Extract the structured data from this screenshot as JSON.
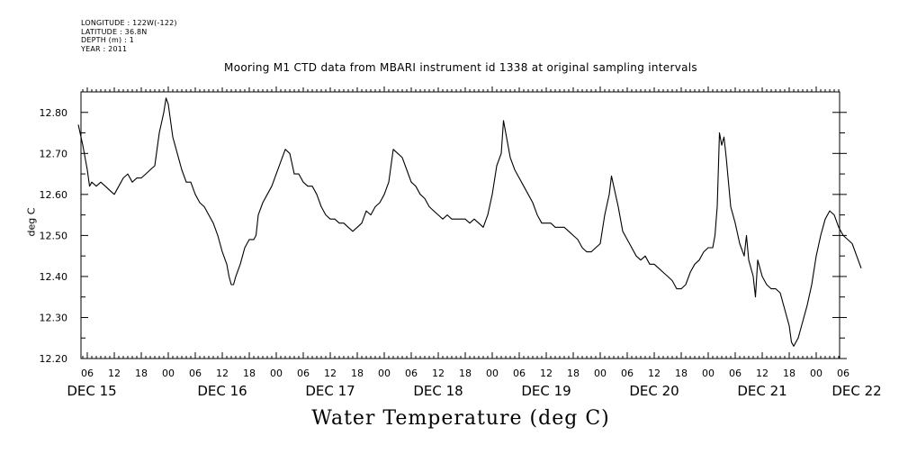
{
  "metadata": {
    "longitude": "LONGITUDE : 122W(-122)",
    "latitude": "LATITUDE : 36.8N",
    "depth": "DEPTH (m) : 1",
    "year": "YEAR : 2011"
  },
  "chart_data": {
    "type": "line",
    "title": "Mooring M1 CTD data from MBARI instrument id 1338 at original sampling intervals",
    "bottom_title": "Water Temperature (deg C)",
    "ylabel": "deg C",
    "xlabel": "",
    "ylim": [
      12.2,
      12.85
    ],
    "yticks": [
      "12.20",
      "12.30",
      "12.40",
      "12.50",
      "12.60",
      "12.70",
      "12.80"
    ],
    "x_units": "hours since DEC 15 00:00 (2011)",
    "xlim": [
      4,
      173
    ],
    "hour_tick_labels": [
      "06",
      "12",
      "18",
      "00",
      "06",
      "12",
      "18",
      "00",
      "06",
      "12",
      "18",
      "00",
      "06",
      "12",
      "18",
      "00",
      "06",
      "12",
      "18",
      "00",
      "06",
      "12",
      "18",
      "00",
      "06",
      "12",
      "18",
      "00",
      "06"
    ],
    "day_labels": [
      "DEC 15",
      "DEC 16",
      "DEC 17",
      "DEC 18",
      "DEC 19",
      "DEC 20",
      "DEC 21",
      "DEC 22"
    ],
    "grid": false,
    "series": [
      {
        "values": [
          [
            4,
            12.77
          ],
          [
            5,
            12.72
          ],
          [
            6,
            12.66
          ],
          [
            6.5,
            12.62
          ],
          [
            7,
            12.63
          ],
          [
            8,
            12.62
          ],
          [
            9,
            12.63
          ],
          [
            10,
            12.62
          ],
          [
            11,
            12.61
          ],
          [
            12,
            12.6
          ],
          [
            13,
            12.62
          ],
          [
            14,
            12.64
          ],
          [
            15,
            12.65
          ],
          [
            16,
            12.63
          ],
          [
            17,
            12.64
          ],
          [
            18,
            12.64
          ],
          [
            19,
            12.65
          ],
          [
            20,
            12.66
          ],
          [
            21,
            12.67
          ],
          [
            22,
            12.75
          ],
          [
            23,
            12.8
          ],
          [
            23.5,
            12.835
          ],
          [
            24,
            12.82
          ],
          [
            25,
            12.74
          ],
          [
            26,
            12.7
          ],
          [
            27,
            12.66
          ],
          [
            28,
            12.63
          ],
          [
            29,
            12.63
          ],
          [
            30,
            12.6
          ],
          [
            31,
            12.58
          ],
          [
            32,
            12.57
          ],
          [
            33,
            12.55
          ],
          [
            34,
            12.53
          ],
          [
            35,
            12.5
          ],
          [
            36,
            12.46
          ],
          [
            37,
            12.43
          ],
          [
            37.5,
            12.4
          ],
          [
            38,
            12.38
          ],
          [
            38.5,
            12.38
          ],
          [
            39,
            12.4
          ],
          [
            40,
            12.43
          ],
          [
            41,
            12.47
          ],
          [
            42,
            12.49
          ],
          [
            43,
            12.49
          ],
          [
            43.5,
            12.5
          ],
          [
            44,
            12.55
          ],
          [
            45,
            12.58
          ],
          [
            46,
            12.6
          ],
          [
            47,
            12.62
          ],
          [
            48,
            12.65
          ],
          [
            49,
            12.68
          ],
          [
            50,
            12.71
          ],
          [
            51,
            12.7
          ],
          [
            52,
            12.65
          ],
          [
            53,
            12.65
          ],
          [
            54,
            12.63
          ],
          [
            55,
            12.62
          ],
          [
            56,
            12.62
          ],
          [
            57,
            12.6
          ],
          [
            58,
            12.57
          ],
          [
            59,
            12.55
          ],
          [
            60,
            12.54
          ],
          [
            61,
            12.54
          ],
          [
            62,
            12.53
          ],
          [
            63,
            12.53
          ],
          [
            64,
            12.52
          ],
          [
            65,
            12.51
          ],
          [
            66,
            12.52
          ],
          [
            67,
            12.53
          ],
          [
            68,
            12.56
          ],
          [
            69,
            12.55
          ],
          [
            70,
            12.57
          ],
          [
            71,
            12.58
          ],
          [
            72,
            12.6
          ],
          [
            73,
            12.63
          ],
          [
            74,
            12.71
          ],
          [
            75,
            12.7
          ],
          [
            76,
            12.69
          ],
          [
            77,
            12.66
          ],
          [
            78,
            12.63
          ],
          [
            79,
            12.62
          ],
          [
            80,
            12.6
          ],
          [
            81,
            12.59
          ],
          [
            82,
            12.57
          ],
          [
            83,
            12.56
          ],
          [
            84,
            12.55
          ],
          [
            85,
            12.54
          ],
          [
            86,
            12.55
          ],
          [
            87,
            12.54
          ],
          [
            88,
            12.54
          ],
          [
            89,
            12.54
          ],
          [
            90,
            12.54
          ],
          [
            91,
            12.53
          ],
          [
            92,
            12.54
          ],
          [
            93,
            12.53
          ],
          [
            94,
            12.52
          ],
          [
            95,
            12.55
          ],
          [
            96,
            12.6
          ],
          [
            97,
            12.67
          ],
          [
            98,
            12.7
          ],
          [
            98.5,
            12.78
          ],
          [
            99,
            12.75
          ],
          [
            100,
            12.69
          ],
          [
            101,
            12.66
          ],
          [
            102,
            12.64
          ],
          [
            103,
            12.62
          ],
          [
            104,
            12.6
          ],
          [
            105,
            12.58
          ],
          [
            106,
            12.55
          ],
          [
            107,
            12.53
          ],
          [
            108,
            12.53
          ],
          [
            109,
            12.53
          ],
          [
            110,
            12.52
          ],
          [
            111,
            12.52
          ],
          [
            112,
            12.52
          ],
          [
            113,
            12.51
          ],
          [
            114,
            12.5
          ],
          [
            115,
            12.49
          ],
          [
            116,
            12.47
          ],
          [
            117,
            12.46
          ],
          [
            118,
            12.46
          ],
          [
            119,
            12.47
          ],
          [
            120,
            12.48
          ],
          [
            121,
            12.55
          ],
          [
            122,
            12.6
          ],
          [
            122.5,
            12.645
          ],
          [
            123,
            12.62
          ],
          [
            124,
            12.57
          ],
          [
            125,
            12.51
          ],
          [
            126,
            12.49
          ],
          [
            127,
            12.47
          ],
          [
            128,
            12.45
          ],
          [
            129,
            12.44
          ],
          [
            130,
            12.45
          ],
          [
            131,
            12.43
          ],
          [
            132,
            12.43
          ],
          [
            133,
            12.42
          ],
          [
            134,
            12.41
          ],
          [
            135,
            12.4
          ],
          [
            136,
            12.39
          ],
          [
            137,
            12.37
          ],
          [
            138,
            12.37
          ],
          [
            139,
            12.38
          ],
          [
            140,
            12.41
          ],
          [
            141,
            12.43
          ],
          [
            142,
            12.44
          ],
          [
            143,
            12.46
          ],
          [
            144,
            12.47
          ],
          [
            145,
            12.47
          ],
          [
            145.5,
            12.5
          ],
          [
            146,
            12.57
          ],
          [
            146.5,
            12.75
          ],
          [
            147,
            12.72
          ],
          [
            147.5,
            12.74
          ],
          [
            148,
            12.69
          ],
          [
            149,
            12.57
          ],
          [
            150,
            12.53
          ],
          [
            151,
            12.48
          ],
          [
            152,
            12.45
          ],
          [
            152.5,
            12.5
          ],
          [
            153,
            12.44
          ],
          [
            154,
            12.4
          ],
          [
            154.5,
            12.35
          ],
          [
            155,
            12.44
          ],
          [
            156,
            12.4
          ],
          [
            157,
            12.38
          ],
          [
            158,
            12.37
          ],
          [
            159,
            12.37
          ],
          [
            160,
            12.36
          ],
          [
            161,
            12.32
          ],
          [
            162,
            12.28
          ],
          [
            162.5,
            12.24
          ],
          [
            163,
            12.23
          ],
          [
            164,
            12.25
          ],
          [
            165,
            12.29
          ],
          [
            166,
            12.33
          ],
          [
            167,
            12.38
          ],
          [
            168,
            12.45
          ],
          [
            169,
            12.5
          ],
          [
            170,
            12.54
          ],
          [
            171,
            12.56
          ],
          [
            172,
            12.55
          ],
          [
            173,
            12.52
          ],
          [
            174,
            12.5
          ],
          [
            175,
            12.49
          ],
          [
            176,
            12.48
          ],
          [
            177,
            12.45
          ],
          [
            178,
            12.42
          ]
        ]
      }
    ]
  }
}
